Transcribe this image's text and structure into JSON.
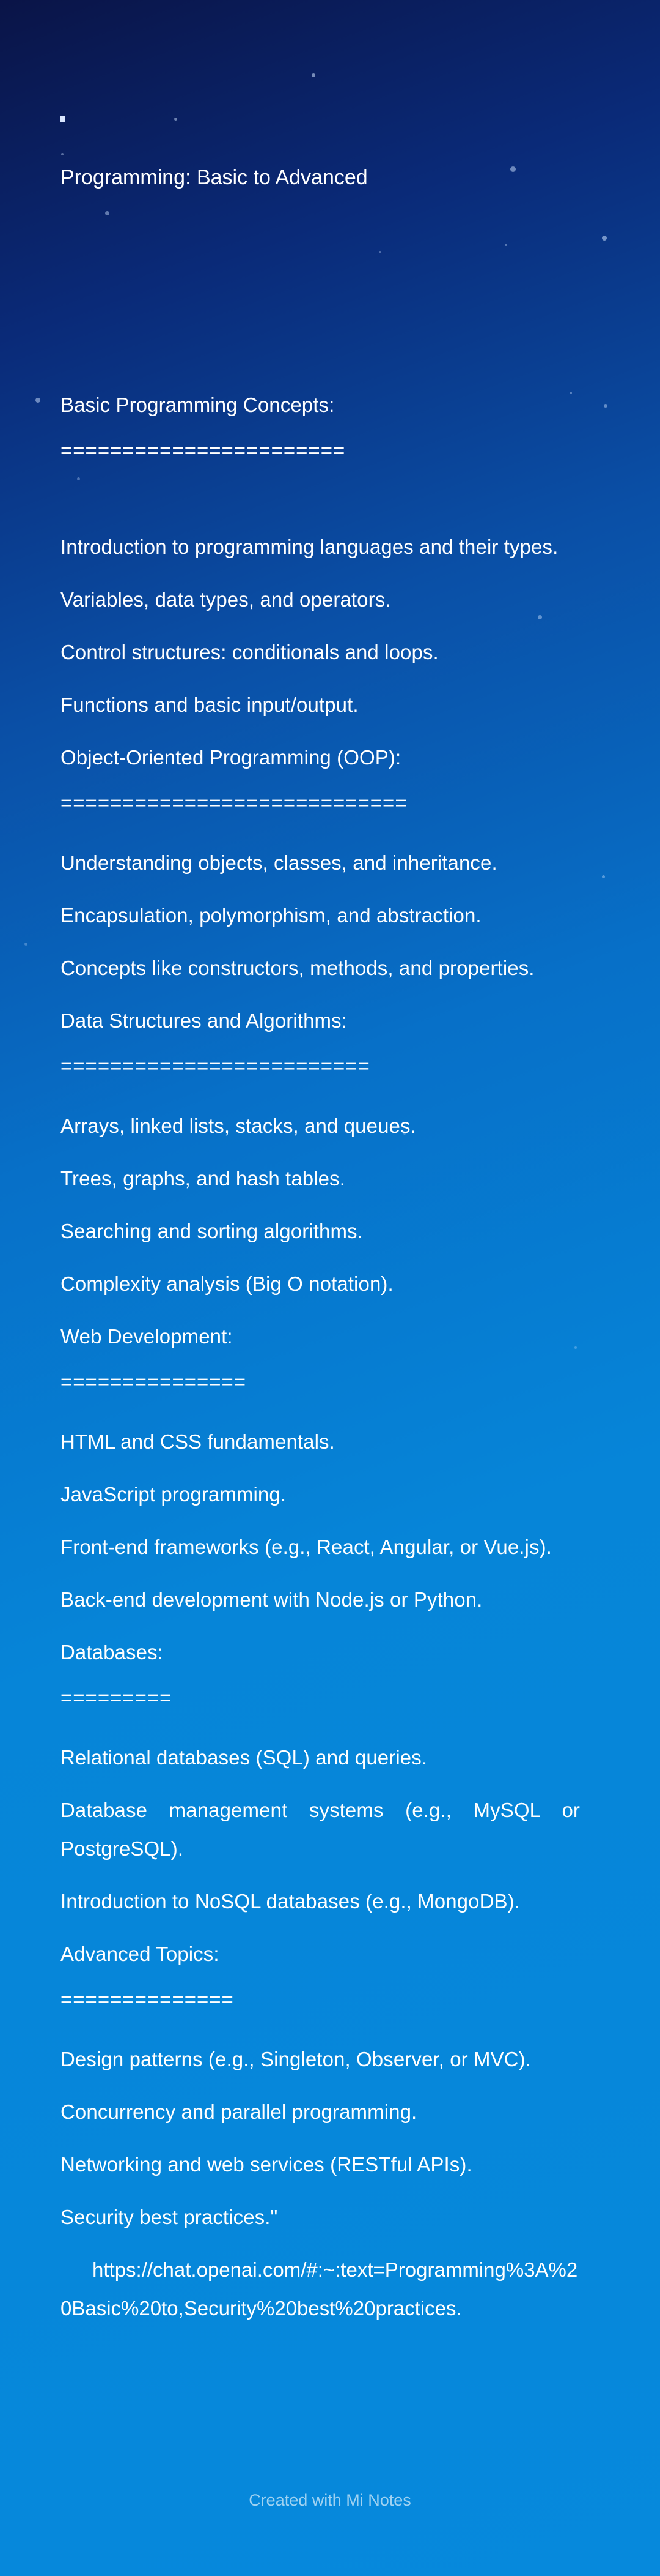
{
  "note": {
    "title": "Programming: Basic to Advanced",
    "sections": [
      {
        "heading": "Basic Programming Concepts:",
        "rule": "=======================",
        "items": [
          "Introduction to programming languages and their types.",
          "Variables, data types, and operators.",
          "Control structures: conditionals and loops.",
          "Functions and basic input/output."
        ]
      },
      {
        "heading": "Object-Oriented Programming (OOP):",
        "rule": "============================",
        "items": [
          "Understanding objects, classes, and inheritance.",
          "Encapsulation, polymorphism, and abstraction.",
          "Concepts like constructors, methods, and properties."
        ]
      },
      {
        "heading": "Data Structures and Algorithms:",
        "rule": "=========================",
        "items": [
          "Arrays, linked lists, stacks, and queues.",
          "Trees, graphs, and hash tables.",
          "Searching and sorting algorithms.",
          "Complexity analysis (Big O notation)."
        ]
      },
      {
        "heading": "Web Development:",
        "rule": "===============",
        "items": [
          "HTML and CSS fundamentals.",
          "JavaScript programming.",
          "Front-end frameworks (e.g., React, Angular, or Vue.js).",
          "Back-end development with Node.js or Python."
        ]
      },
      {
        "heading": "Databases:",
        "rule": "=========",
        "items": [
          "Relational databases (SQL) and queries.",
          "Database management systems (e.g., MySQL or PostgreSQL).",
          "Introduction to NoSQL databases (e.g., MongoDB)."
        ]
      },
      {
        "heading": "Advanced Topics:",
        "rule": "==============",
        "items": [
          "Design patterns (e.g., Singleton, Observer, or MVC).",
          "Concurrency and parallel programming.",
          "Networking and web services (RESTful APIs).",
          "Security best practices.\""
        ]
      }
    ],
    "link": "https://chat.openai.com/#:~:text=Programming%3A%20Basic%20to,Security%20best%20practices."
  },
  "footer": {
    "text": "Created with Mi Notes"
  },
  "colors": {
    "background_top": "#0a1447",
    "background_bottom": "#0689dc",
    "text": "#ffffff"
  }
}
